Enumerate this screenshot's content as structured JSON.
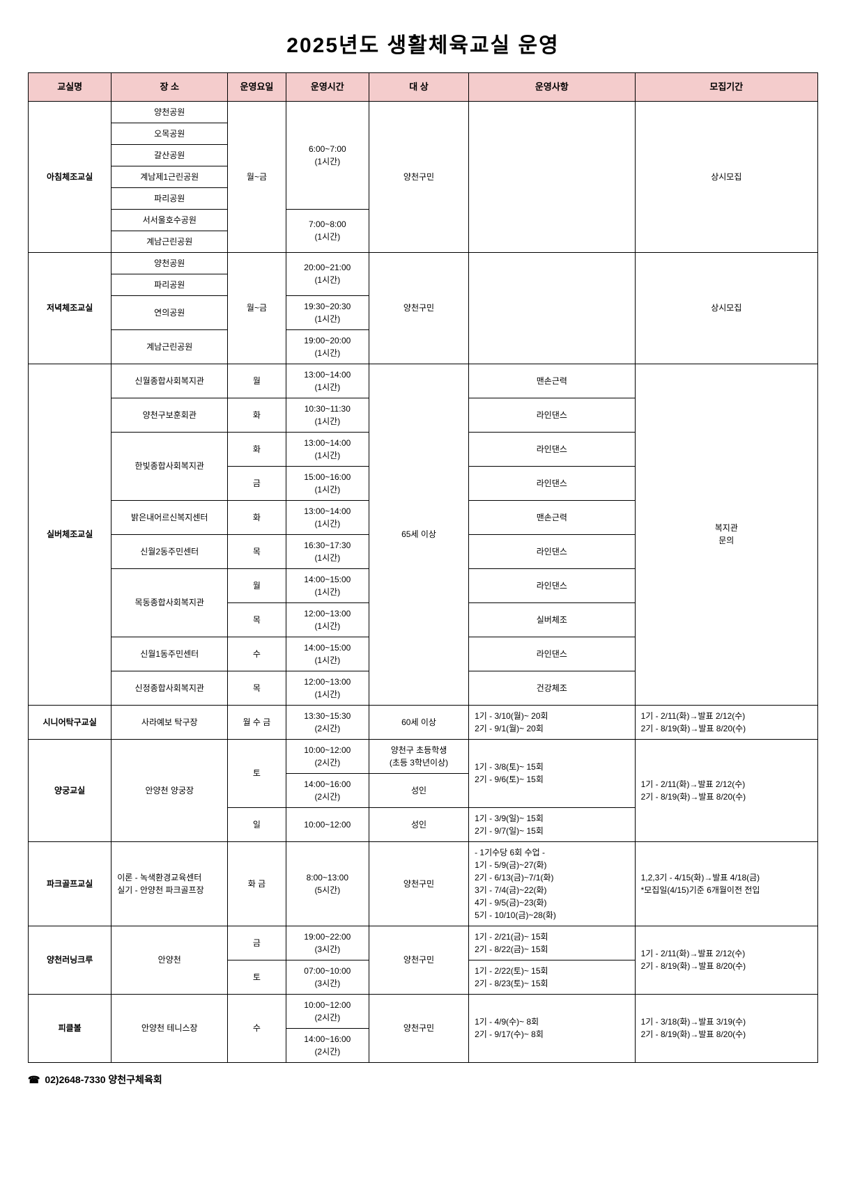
{
  "title": "2025년도 생활체육교실 운영",
  "headers": {
    "class": "교실명",
    "place": "장 소",
    "day": "운영요일",
    "time": "운영시간",
    "target": "대 상",
    "detail": "운영사항",
    "recruit": "모집기간"
  },
  "rows": {
    "morning": {
      "class": "아침체조교실",
      "places": [
        "양천공원",
        "오목공원",
        "갈산공원",
        "계남제1근린공원",
        "파리공원",
        "서서울호수공원",
        "계남근린공원"
      ],
      "day": "월~금",
      "time1": "6:00~7:00\n(1시간)",
      "time2": "7:00~8:00\n(1시간)",
      "target": "양천구민",
      "detail": "",
      "recruit": "상시모집"
    },
    "evening": {
      "class": "저녁체조교실",
      "places": [
        "양천공원",
        "파리공원",
        "연의공원",
        "계남근린공원"
      ],
      "day": "월~금",
      "times": [
        "20:00~21:00\n(1시간)",
        "19:30~20:30\n(1시간)",
        "19:00~20:00\n(1시간)"
      ],
      "target": "양천구민",
      "detail": "",
      "recruit": "상시모집"
    },
    "silver": {
      "class": "실버체조교실",
      "target": "65세 이상",
      "recruit": "복지관\n문의",
      "entries": [
        {
          "place": "신월종합사회복지관",
          "day": "월",
          "time": "13:00~14:00\n(1시간)",
          "detail": "맨손근력"
        },
        {
          "place": "양천구보훈회관",
          "day": "화",
          "time": "10:30~11:30\n(1시간)",
          "detail": "라인댄스"
        },
        {
          "place": "한빛종합사회복지관",
          "day": "화",
          "time": "13:00~14:00\n(1시간)",
          "detail": "라인댄스"
        },
        {
          "place_merge": true,
          "day": "금",
          "time": "15:00~16:00\n(1시간)",
          "detail": "라인댄스"
        },
        {
          "place": "밝은내어르신복지센터",
          "day": "화",
          "time": "13:00~14:00\n(1시간)",
          "detail": "맨손근력"
        },
        {
          "place": "신월2동주민센터",
          "day": "목",
          "time": "16:30~17:30\n(1시간)",
          "detail": "라인댄스"
        },
        {
          "place": "목동종합사회복지관",
          "day": "월",
          "time": "14:00~15:00\n(1시간)",
          "detail": "라인댄스"
        },
        {
          "place_merge": true,
          "day": "목",
          "time": "12:00~13:00\n(1시간)",
          "detail": "실버체조"
        },
        {
          "place": "신월1동주민센터",
          "day": "수",
          "time": "14:00~15:00\n(1시간)",
          "detail": "라인댄스"
        },
        {
          "place": "신정종합사회복지관",
          "day": "목",
          "time": "12:00~13:00\n(1시간)",
          "detail": "건강체조"
        }
      ]
    },
    "tabletennis": {
      "class": "시니어탁구교실",
      "place": "사라예보 탁구장",
      "day": "월 수 금",
      "time": "13:30~15:30\n(2시간)",
      "target": "60세 이상",
      "detail": "1기 - 3/10(월)~ 20회\n2기 - 9/1(월)~ 20회",
      "recruit": "1기 - 2/11(화)→발표 2/12(수)\n2기 - 8/19(화)→발표 8/20(수)"
    },
    "archery": {
      "class": "양궁교실",
      "place": "안양천 양궁장",
      "entries": [
        {
          "day": "토",
          "time": "10:00~12:00\n(2시간)",
          "target": "양천구 초등학생\n(초등 3학년이상)",
          "detail": "1기 - 3/8(토)~ 15회\n2기 - 9/6(토)~ 15회"
        },
        {
          "day_merge": true,
          "time": "14:00~16:00\n(2시간)",
          "target": "성인"
        },
        {
          "day": "일",
          "time": "10:00~12:00",
          "target": "성인",
          "detail": "1기 - 3/9(일)~ 15회\n2기 - 9/7(일)~ 15회"
        }
      ],
      "recruit": "1기 - 2/11(화)→발표 2/12(수)\n2기 - 8/19(화)→발표 8/20(수)"
    },
    "parkgolf": {
      "class": "파크골프교실",
      "place": "이론 - 녹색환경교육센터\n실기 - 안양천 파크골프장",
      "day": "화 금",
      "time": "8:00~13:00\n(5시간)",
      "target": "양천구민",
      "detail": "- 1기수당 6회 수업 -\n1기 - 5/9(금)~27(화)\n2기 - 6/13(금)~7/1(화)\n3기 - 7/4(금)~22(화)\n4기 - 9/5(금)~23(화)\n5기 - 10/10(금)~28(화)",
      "recruit": "1,2,3기 - 4/15(화)→발표 4/18(금)\n*모집일(4/15)기준 6개월이전 전입"
    },
    "running": {
      "class": "양천러닝크루",
      "place": "안양천",
      "entries": [
        {
          "day": "금",
          "time": "19:00~22:00\n(3시간)",
          "detail": "1기 - 2/21(금)~ 15회\n2기 - 8/22(금)~ 15회"
        },
        {
          "day": "토",
          "time": "07:00~10:00\n(3시간)",
          "detail": "1기 - 2/22(토)~ 15회\n2기 - 8/23(토)~ 15회"
        }
      ],
      "target": "양천구민",
      "recruit": "1기 - 2/11(화)→발표 2/12(수)\n2기 - 8/19(화)→발표 8/20(수)"
    },
    "pickleball": {
      "class": "피클볼",
      "place": "안양천 테니스장",
      "day": "수",
      "times": [
        "10:00~12:00\n(2시간)",
        "14:00~16:00\n(2시간)"
      ],
      "target": "양천구민",
      "detail": "1기 - 4/9(수)~ 8회\n2기 - 9/17(수)~ 8회",
      "recruit": "1기 - 3/18(화)→발표 3/19(수)\n2기 - 8/19(화)→발표 8/20(수)"
    }
  },
  "footer": {
    "phone_icon": "☎",
    "text": "02)2648-7330  양천구체육회"
  }
}
